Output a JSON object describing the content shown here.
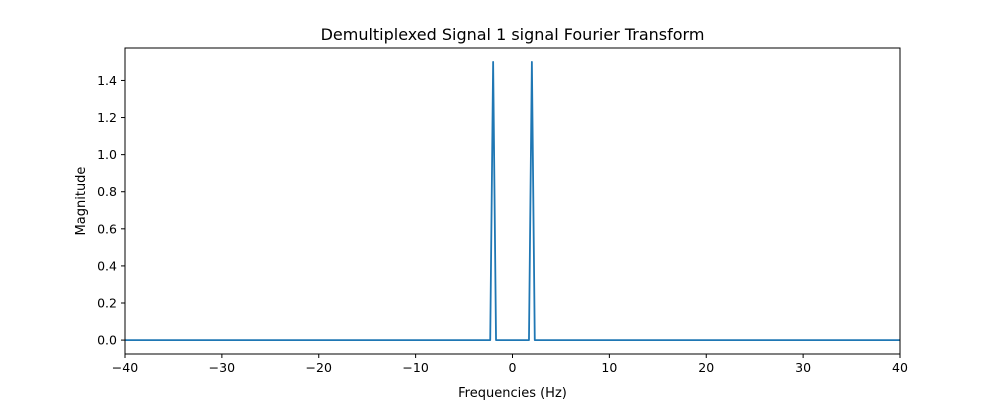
{
  "chart_data": {
    "type": "line",
    "title": "Demultiplexed Signal 1 signal Fourier Transform",
    "xlabel": "Frequencies (Hz)",
    "ylabel": "Magnitude",
    "xlim": [
      -40,
      40
    ],
    "ylim": [
      -0.075,
      1.575
    ],
    "xticks": [
      -40,
      -30,
      -20,
      -10,
      0,
      10,
      20,
      30,
      40
    ],
    "xtick_labels": [
      "−40",
      "−30",
      "−20",
      "−10",
      "0",
      "10",
      "20",
      "30",
      "40"
    ],
    "yticks": [
      0.0,
      0.2,
      0.4,
      0.6,
      0.8,
      1.0,
      1.2,
      1.4
    ],
    "ytick_labels": [
      "0.0",
      "0.2",
      "0.4",
      "0.6",
      "0.8",
      "1.0",
      "1.2",
      "1.4"
    ],
    "grid": false,
    "series": [
      {
        "color": "#1f77b4",
        "x": [
          -40,
          -2.3,
          -2.0,
          -1.7,
          1.7,
          2.0,
          2.3,
          40
        ],
        "y": [
          0,
          0,
          1.5,
          0,
          0,
          1.5,
          0,
          0
        ]
      }
    ]
  }
}
